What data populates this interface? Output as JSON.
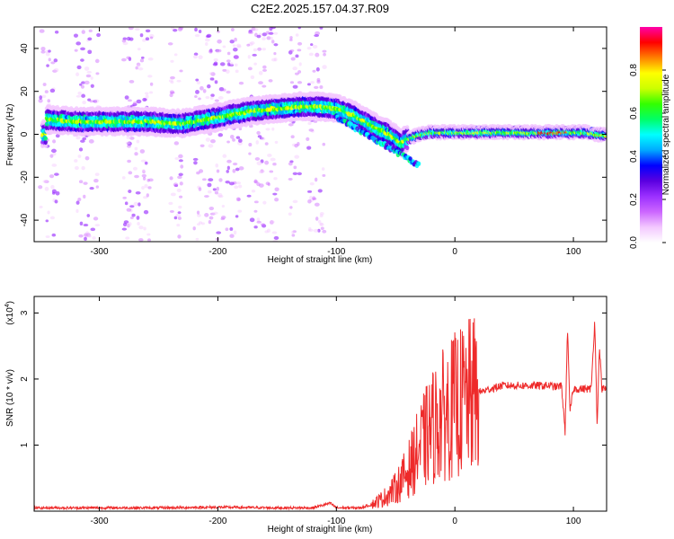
{
  "title": "C2E2.2025.157.04.37.R09",
  "colors": {
    "snr_line": "#ee2a2a",
    "frame": "#000000",
    "colormap": [
      "#ffffff",
      "#f3c8ff",
      "#cc66ff",
      "#9b30ff",
      "#5a00e0",
      "#0000ff",
      "#00aaff",
      "#00ffff",
      "#00ff66",
      "#33ff00",
      "#ccff00",
      "#ffff00",
      "#ff8000",
      "#ff0000",
      "#ff00aa"
    ]
  },
  "chart_data": [
    {
      "type": "heatmap",
      "name": "spectrogram",
      "xlabel": "Height of straight line (km)",
      "ylabel": "Frequency (Hz)",
      "xlim": [
        -355,
        128
      ],
      "ylim": [
        -50,
        50
      ],
      "xticks": [
        -300,
        -200,
        -100,
        0,
        100
      ],
      "yticks": [
        -40,
        -20,
        0,
        20,
        40
      ],
      "colorbar": {
        "label": "Normalized spectral amplitude",
        "range": [
          0.0,
          1.0
        ],
        "ticks": [
          0.0,
          0.2,
          0.4,
          0.6,
          0.8
        ]
      },
      "ridge": {
        "x": [
          -345,
          -320,
          -290,
          -260,
          -230,
          -210,
          -190,
          -170,
          -150,
          -130,
          -115,
          -100,
          -85,
          -70,
          -55,
          -45,
          -40,
          -30,
          -20,
          -10,
          0,
          20,
          40,
          60,
          80,
          90,
          100,
          110,
          120,
          128
        ],
        "y": [
          7,
          6,
          6,
          6,
          5,
          7,
          9,
          11,
          12,
          13,
          13,
          12,
          9,
          4,
          0,
          -4,
          -2,
          0,
          1,
          1,
          1,
          1,
          1,
          1,
          1,
          1,
          1,
          1,
          0,
          0
        ]
      },
      "noise_strips_x": [
        [
          -350,
          -335
        ],
        [
          -320,
          -300
        ],
        [
          -280,
          -255
        ],
        [
          -240,
          -230
        ],
        [
          -220,
          -180
        ],
        [
          -175,
          -150
        ],
        [
          -140,
          -130
        ],
        [
          -125,
          -110
        ]
      ]
    },
    {
      "type": "line",
      "name": "snr",
      "xlabel": "Height of straight line (km)",
      "ylabel": "SNR (10 * v/v)",
      "y_scale_note": "(x10",
      "y_scale_exp": "4",
      "xlim": [
        -355,
        128
      ],
      "ylim": [
        0,
        3.25
      ],
      "xticks": [
        -300,
        -200,
        -100,
        0,
        100
      ],
      "yticks": [
        1,
        2,
        3
      ],
      "x": [
        -355,
        -300,
        -250,
        -200,
        -150,
        -120,
        -105,
        -100,
        -90,
        -80,
        -70,
        -60,
        -50,
        -40,
        -30,
        -20,
        -10,
        0,
        10,
        20,
        30,
        40,
        50,
        60,
        70,
        80,
        85,
        90,
        93,
        95,
        97,
        100,
        105,
        110,
        115,
        118,
        120,
        122,
        124,
        128
      ],
      "y": [
        0.05,
        0.05,
        0.05,
        0.06,
        0.05,
        0.05,
        0.12,
        0.05,
        0.05,
        0.05,
        0.1,
        0.2,
        0.35,
        0.6,
        0.95,
        1.25,
        1.45,
        1.6,
        1.7,
        1.8,
        1.85,
        1.9,
        1.9,
        1.9,
        1.9,
        1.9,
        1.88,
        1.9,
        1.2,
        2.8,
        1.5,
        1.85,
        1.85,
        1.85,
        1.85,
        2.9,
        1.3,
        2.5,
        1.85,
        1.85
      ]
    }
  ]
}
